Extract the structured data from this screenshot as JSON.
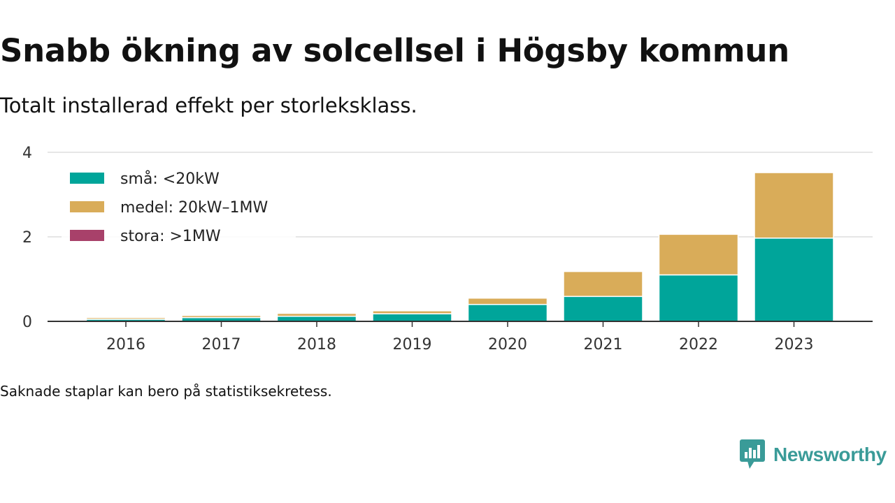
{
  "title": "Snabb ökning av solcellsel i Högsby kommun",
  "subtitle": "Totalt installerad effekt per storleksklass.",
  "footnote": "Saknade staplar kan bero på statistiksekretess.",
  "brand": {
    "name": "Newsworthy",
    "color": "#3a9b98",
    "icon": "chart-speech-bubble-icon"
  },
  "colors": {
    "grid": "#dddddd",
    "axis": "#333333",
    "text": "#111111"
  },
  "chart_data": {
    "type": "bar",
    "stacked": true,
    "categories": [
      "2016",
      "2017",
      "2018",
      "2019",
      "2020",
      "2021",
      "2022",
      "2023"
    ],
    "series": [
      {
        "name": "små: <20kW",
        "color": "#00a59a",
        "values": [
          0.05,
          0.09,
          0.12,
          0.18,
          0.4,
          0.59,
          1.1,
          1.97
        ]
      },
      {
        "name": "medel: 20kW–1MW",
        "color": "#d9ac59",
        "values": [
          0.04,
          0.05,
          0.07,
          0.07,
          0.15,
          0.59,
          0.96,
          1.55
        ]
      },
      {
        "name": "stora: >1MW",
        "color": "#a8416a",
        "values": [
          0,
          0,
          0,
          0,
          0,
          0,
          0,
          0
        ]
      }
    ],
    "yticks": [
      0,
      2,
      4
    ],
    "ylim": [
      0,
      4
    ],
    "xlabel": "",
    "ylabel": "",
    "grid": true,
    "legend_position": "top-left"
  }
}
